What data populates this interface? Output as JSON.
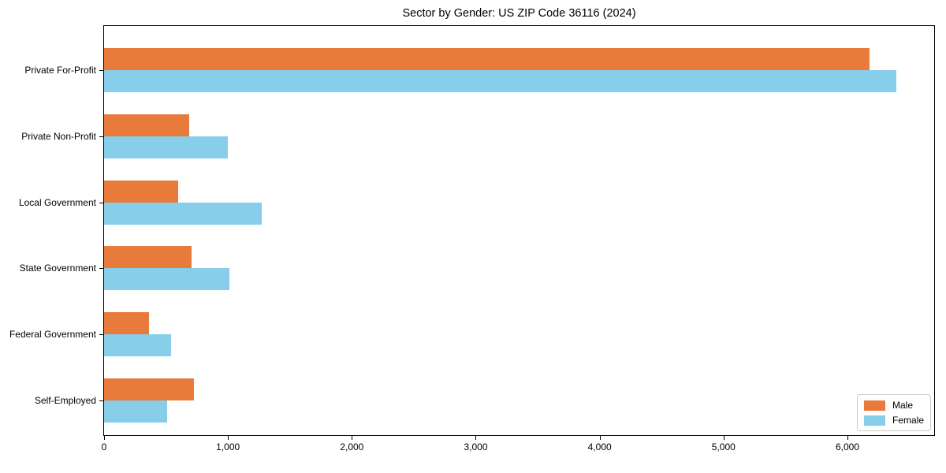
{
  "chart_data": {
    "type": "bar",
    "orientation": "horizontal",
    "title": "Sector by Gender: US ZIP Code 36116 (2024)",
    "categories": [
      "Private For-Profit",
      "Private Non-Profit",
      "Local Government",
      "State Government",
      "Federal Government",
      "Self-Employed"
    ],
    "series": [
      {
        "name": "Male",
        "color": "#e87a3c",
        "values": [
          6180,
          690,
          595,
          705,
          360,
          725
        ]
      },
      {
        "name": "Female",
        "color": "#87ceeb",
        "values": [
          6395,
          1000,
          1275,
          1010,
          540,
          510
        ]
      }
    ],
    "xlabel": "",
    "ylabel": "",
    "xlim": [
      0,
      6700
    ],
    "xticks": {
      "values": [
        0,
        1000,
        2000,
        3000,
        4000,
        5000,
        6000
      ],
      "labels": [
        "0",
        "1,000",
        "2,000",
        "3,000",
        "4,000",
        "5,000",
        "6,000"
      ]
    },
    "grid": false,
    "legend_position": "lower right"
  },
  "colors": {
    "background": "#ffffff",
    "spine": "#000000",
    "legend_border": "#cccccc",
    "male": "#e87a3c",
    "female": "#87ceeb"
  }
}
